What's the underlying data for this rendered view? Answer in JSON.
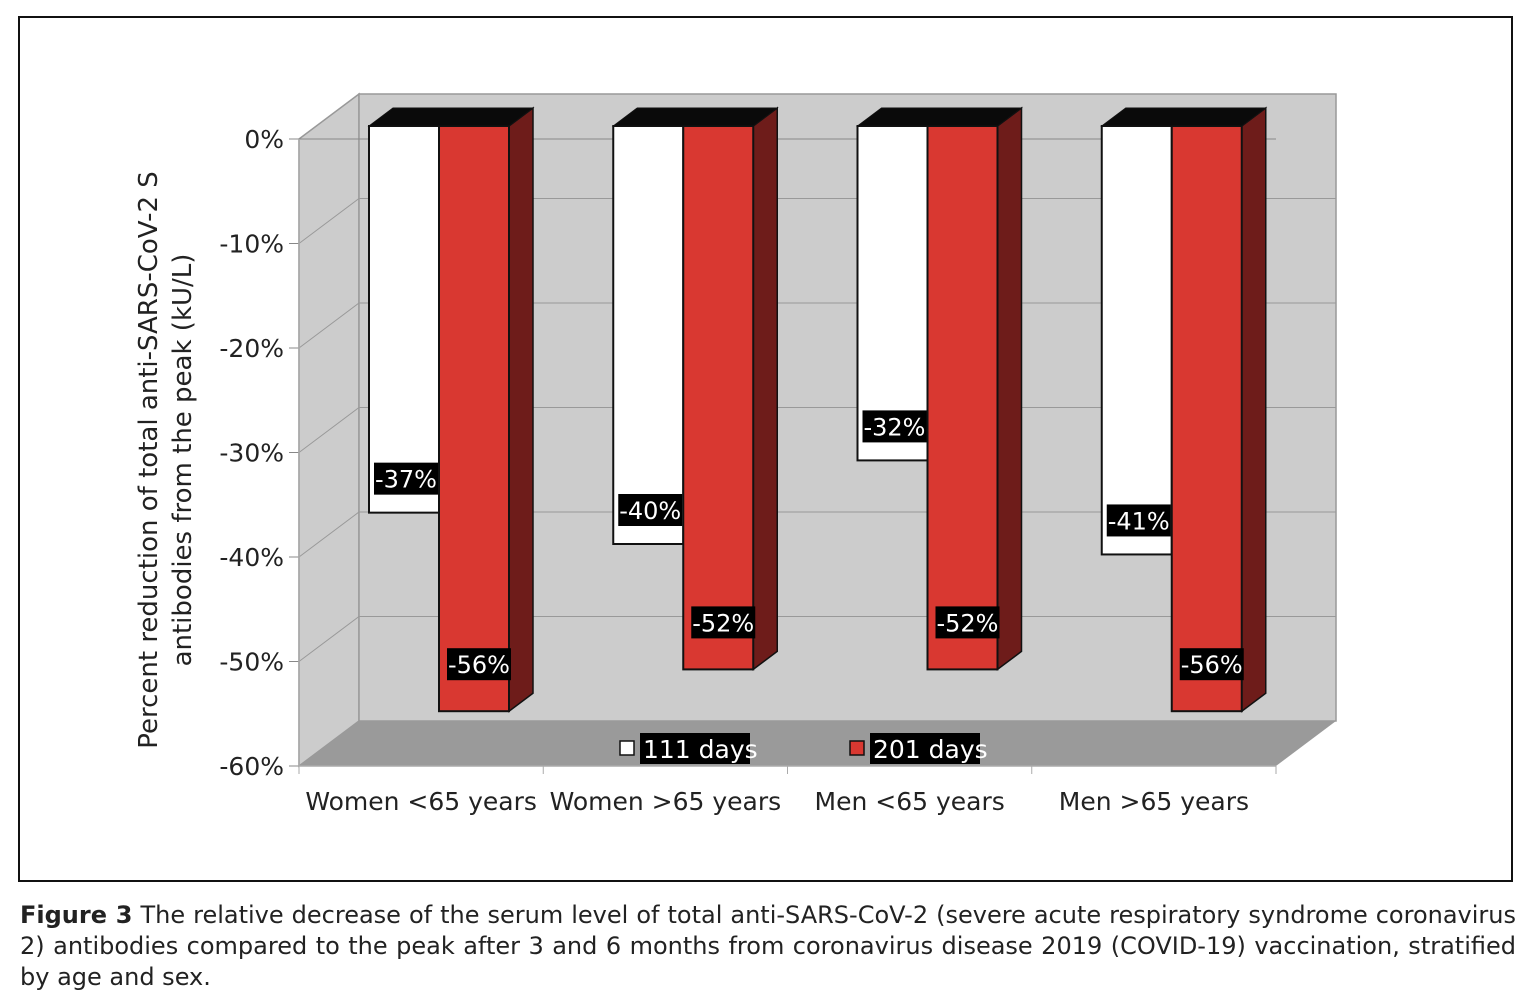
{
  "chart_data": {
    "type": "bar",
    "style": "3d-clustered-column",
    "categories": [
      "Women <65 years",
      "Women >65 years",
      "Men <65 years",
      "Men >65 years"
    ],
    "series": [
      {
        "name": "111 days",
        "values": [
          -37,
          -40,
          -32,
          -41
        ],
        "labels": [
          "-37%",
          "-40%",
          "-32%",
          "-41%"
        ],
        "color": "#ffffff"
      },
      {
        "name": "201 days",
        "values": [
          -56,
          -52,
          -52,
          -56
        ],
        "labels": [
          "-56%",
          "-52%",
          "-52%",
          "-56%"
        ],
        "color": "#d93831"
      }
    ],
    "ylabel": [
      "Percent reduction of total anti-SARS-CoV-2 S",
      "antibodies from the peak (kU/L)"
    ],
    "ylim": [
      -60,
      0
    ],
    "yticks": [
      "0%",
      "-10%",
      "-20%",
      "-30%",
      "-40%",
      "-50%",
      "-60%"
    ],
    "grid": true,
    "legend": "bottom-inside",
    "colors": {
      "wall": "#cccccc",
      "floor": "#9a9a9a",
      "bar_top": "#0a0a0a",
      "red_side": "#6e1c1a",
      "label_bg": "#000000"
    }
  },
  "caption": {
    "label": "Figure 3",
    "text": " The relative decrease of the serum level of total anti-SARS-CoV-2 (severe acute respiratory syndrome coronavirus 2) antibodies compared to the peak after 3 and 6 months from coronavirus disease 2019 (COVID-19) vaccination, stratified by age and sex."
  }
}
